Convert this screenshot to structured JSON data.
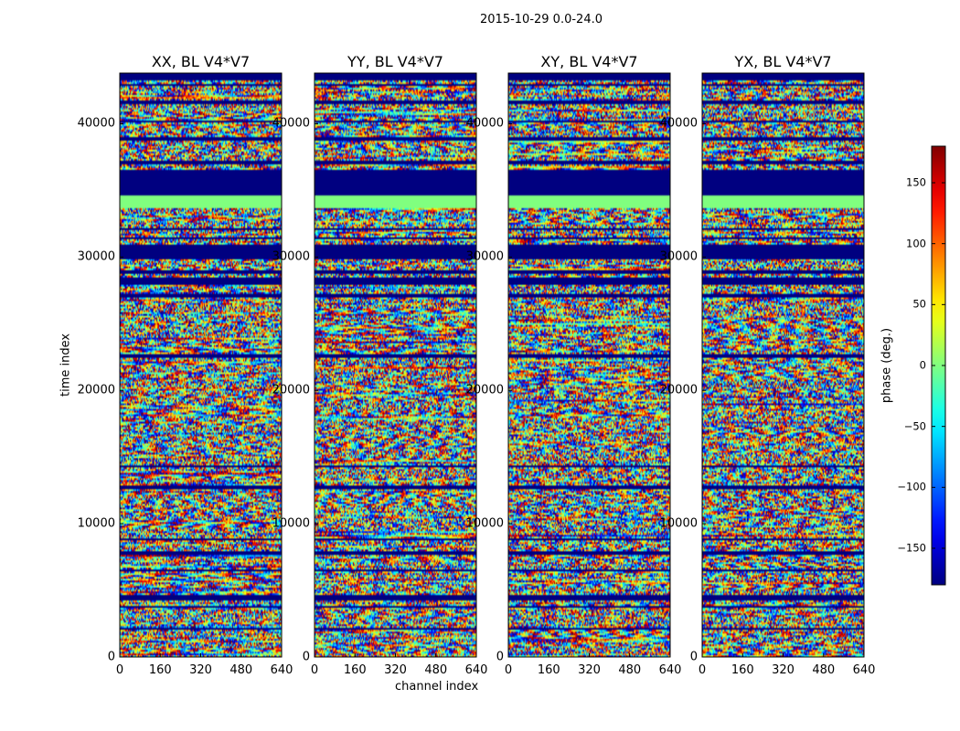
{
  "chart_data": {
    "type": "heatmap",
    "suptitle": "2015-10-29 0.0-24.0",
    "xlabel": "channel index",
    "ylabel": "time index",
    "xlim": [
      0,
      640
    ],
    "ylim": [
      0,
      43800
    ],
    "xticks": [
      "0",
      "160",
      "320",
      "480",
      "640"
    ],
    "yticks": [
      "0",
      "10000",
      "20000",
      "30000",
      "40000"
    ],
    "panels": [
      {
        "title": "XX, BL V4*V7"
      },
      {
        "title": "YY, BL V4*V7"
      },
      {
        "title": "XY, BL V4*V7"
      },
      {
        "title": "YX, BL V4*V7"
      }
    ],
    "colorbar": {
      "label": "phase (deg.)",
      "range": [
        -180,
        180
      ],
      "ticks": [
        -150,
        -100,
        -50,
        0,
        50,
        100,
        150
      ],
      "tick_labels": [
        "−150",
        "−100",
        "−50",
        "0",
        "50",
        "100",
        "150"
      ],
      "colormap": "jet"
    },
    "flagged_time_bands": [
      [
        43200,
        43800
      ],
      [
        42800,
        43000
      ],
      [
        41500,
        41700
      ],
      [
        40100,
        40300
      ],
      [
        38800,
        39000
      ],
      [
        37000,
        37200
      ],
      [
        34600,
        36500
      ],
      [
        32000,
        32200
      ],
      [
        31300,
        31500
      ],
      [
        29900,
        31000
      ],
      [
        28800,
        29000
      ],
      [
        27900,
        28500
      ],
      [
        27000,
        27300
      ],
      [
        22500,
        22700
      ],
      [
        14200,
        14400
      ],
      [
        12600,
        12900
      ],
      [
        8700,
        8900
      ],
      [
        7700,
        7900
      ],
      [
        6400,
        6600
      ],
      [
        4200,
        4600
      ],
      [
        3700,
        3900
      ],
      [
        2000,
        2200
      ]
    ],
    "zero_phase_bands": [
      [
        33700,
        34600
      ]
    ]
  },
  "colors": {
    "flag": "#000080",
    "zero": "#80ff7f"
  }
}
